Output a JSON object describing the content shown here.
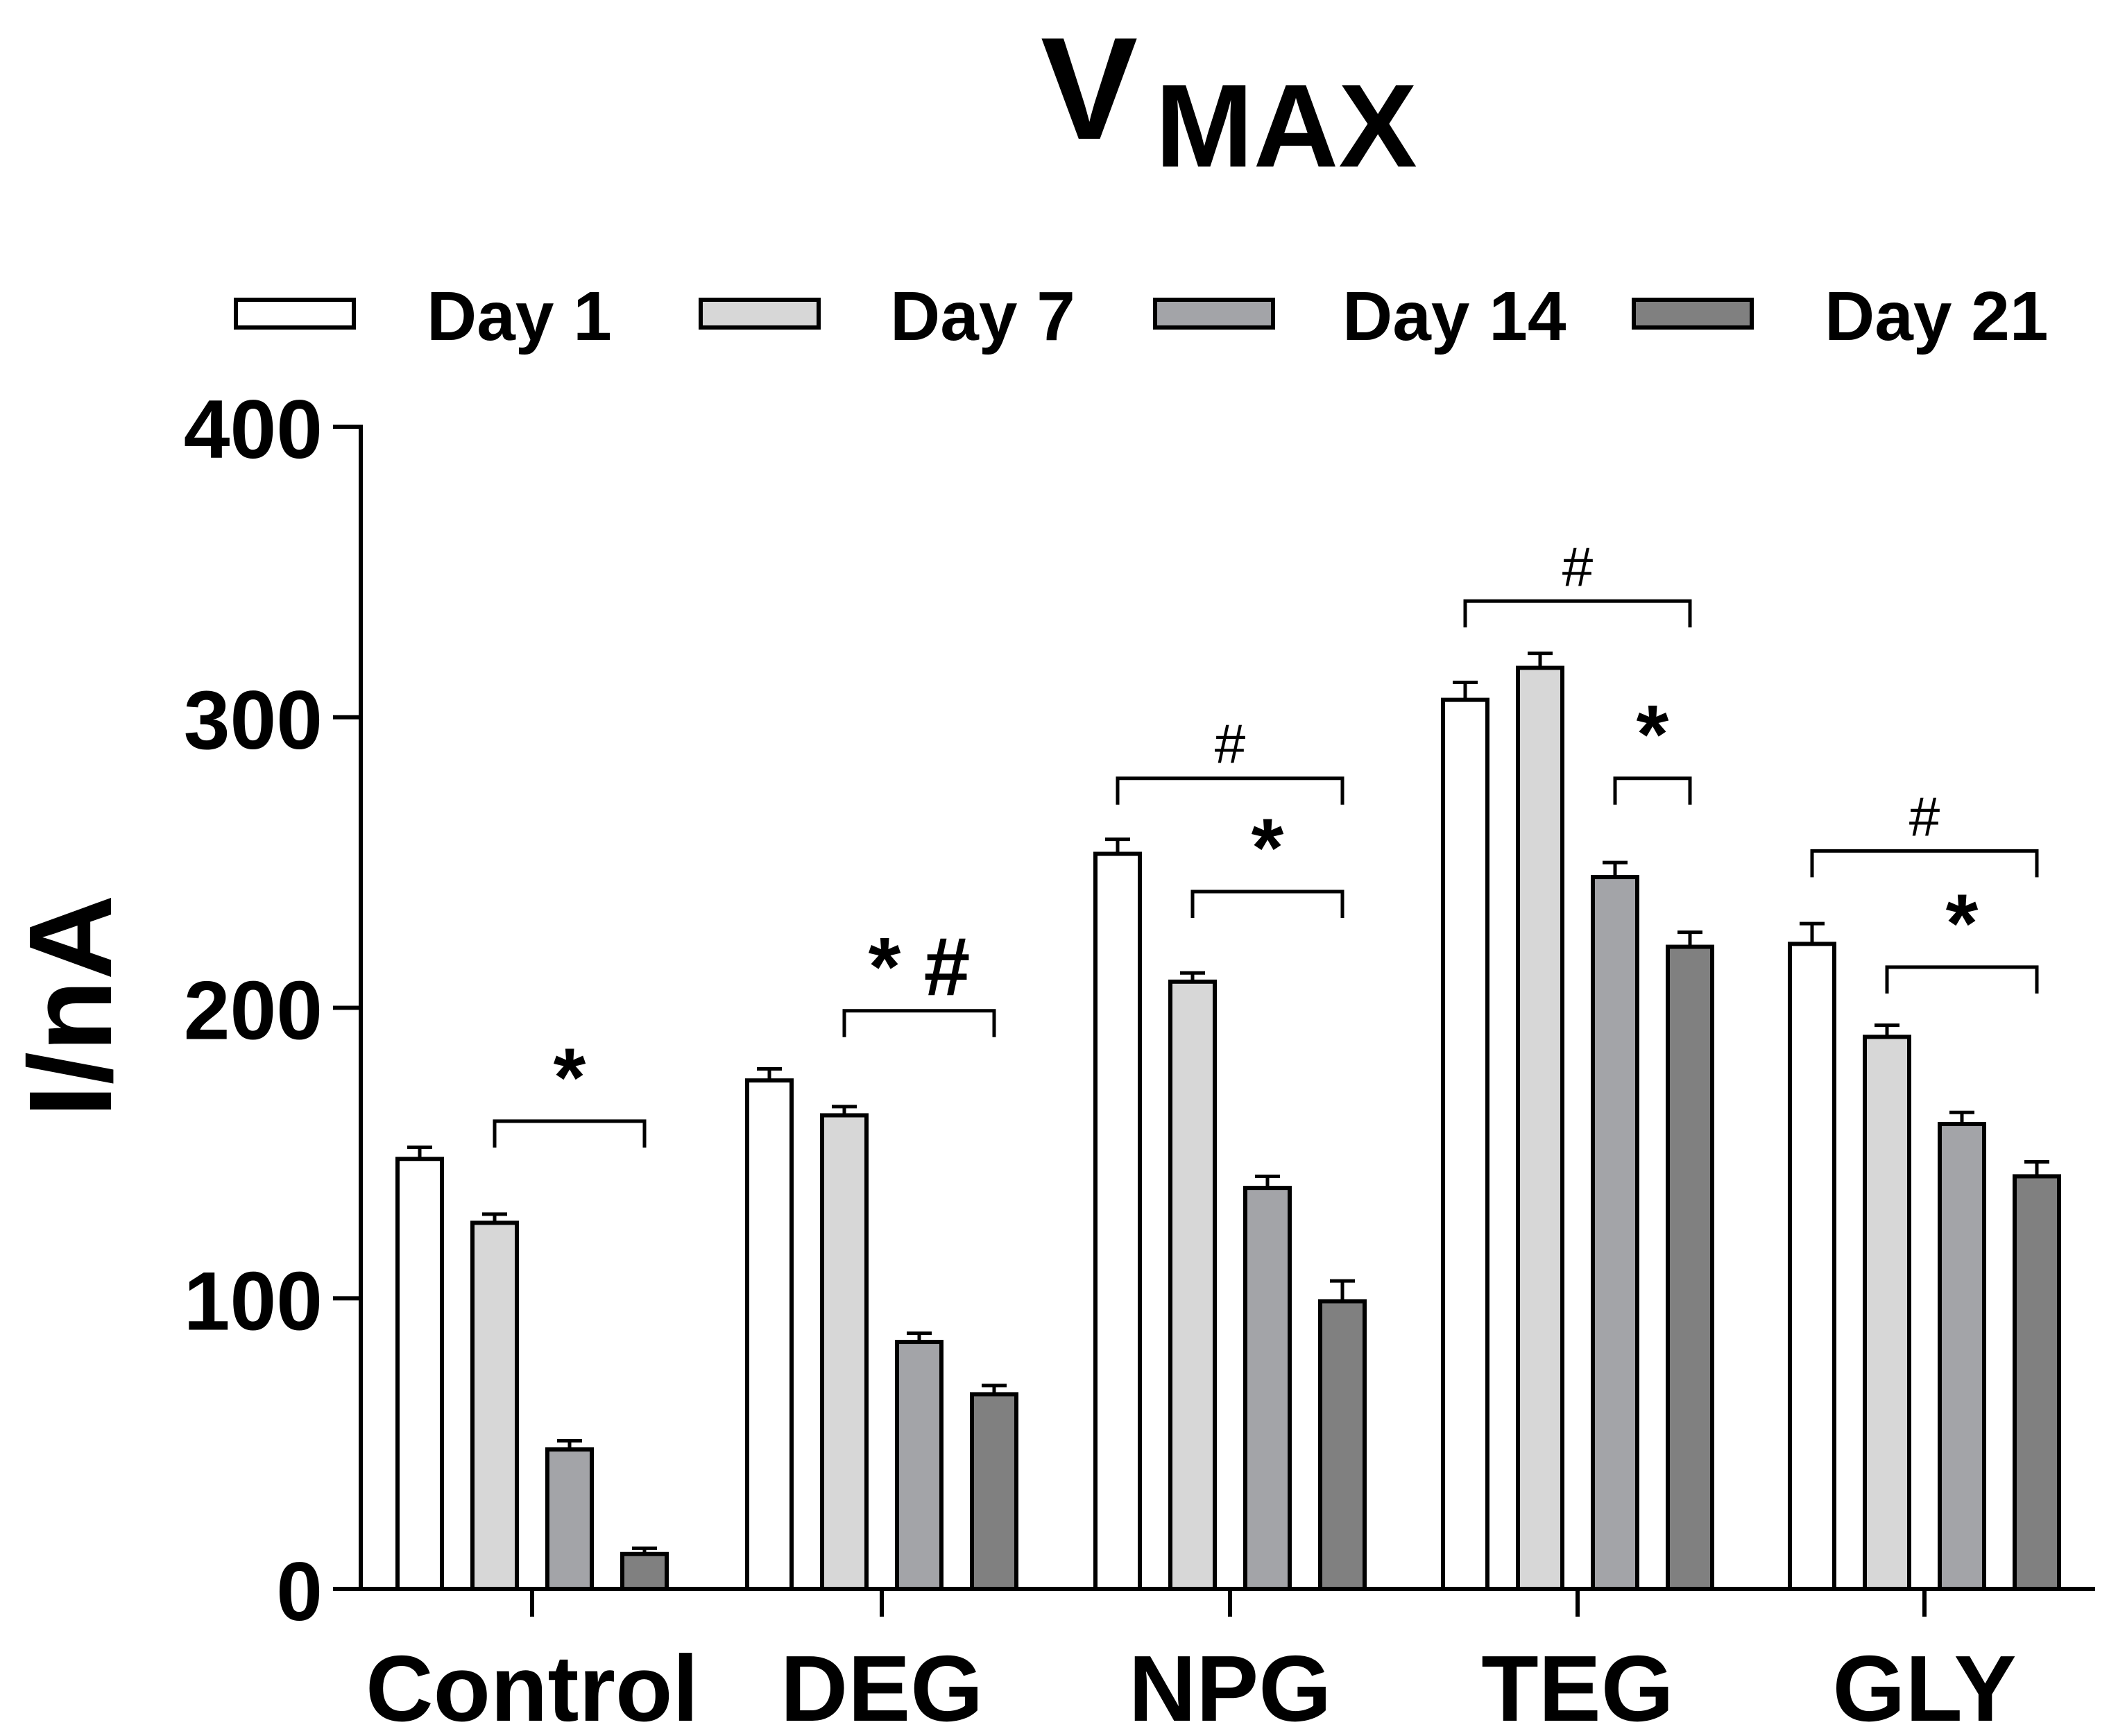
{
  "chart_data": {
    "type": "bar",
    "title_main": "V",
    "title_sub": "MAX",
    "ylabel": "I/nA",
    "xlabel": "",
    "ylim": [
      0,
      400
    ],
    "yticks": [
      0,
      100,
      200,
      300,
      400
    ],
    "grid": false,
    "legend_position": "top",
    "categories": [
      "Control",
      "DEG",
      "NPG",
      "TEG",
      "GLY"
    ],
    "series": [
      {
        "name": "Day 1",
        "color": "#ffffff",
        "values": [
          148,
          175,
          253,
          306,
          222
        ],
        "errors": [
          4,
          4,
          5,
          6,
          7
        ]
      },
      {
        "name": "Day 7",
        "color": "#d7d7d7",
        "values": [
          126,
          163,
          209,
          317,
          190
        ],
        "errors": [
          3,
          3,
          3,
          5,
          4
        ]
      },
      {
        "name": "Day 14",
        "color": "#a3a4a8",
        "values": [
          48,
          85,
          138,
          245,
          160
        ],
        "errors": [
          3,
          3,
          4,
          5,
          4
        ]
      },
      {
        "name": "Day 21",
        "color": "#808080",
        "values": [
          12,
          67,
          99,
          221,
          142
        ],
        "errors": [
          2,
          3,
          7,
          5,
          5
        ]
      }
    ],
    "annotations": [
      {
        "category": 0,
        "from_series": 1,
        "to_series": 3,
        "y": 161,
        "text": "*"
      },
      {
        "category": 1,
        "from_series": 1,
        "to_series": 3,
        "y": 199,
        "text": "*  #"
      },
      {
        "category": 2,
        "from_series": 0,
        "to_series": 3,
        "y": 279,
        "text": "#"
      },
      {
        "category": 2,
        "from_series": 1,
        "to_series": 3,
        "y": 240,
        "text": "*"
      },
      {
        "category": 3,
        "from_series": 0,
        "to_series": 3,
        "y": 340,
        "text": "#"
      },
      {
        "category": 3,
        "from_series": 2,
        "to_series": 3,
        "y": 279,
        "text": "*"
      },
      {
        "category": 4,
        "from_series": 0,
        "to_series": 3,
        "y": 254,
        "text": "#"
      },
      {
        "category": 4,
        "from_series": 1,
        "to_series": 3,
        "y": 214,
        "text": "*"
      }
    ]
  }
}
